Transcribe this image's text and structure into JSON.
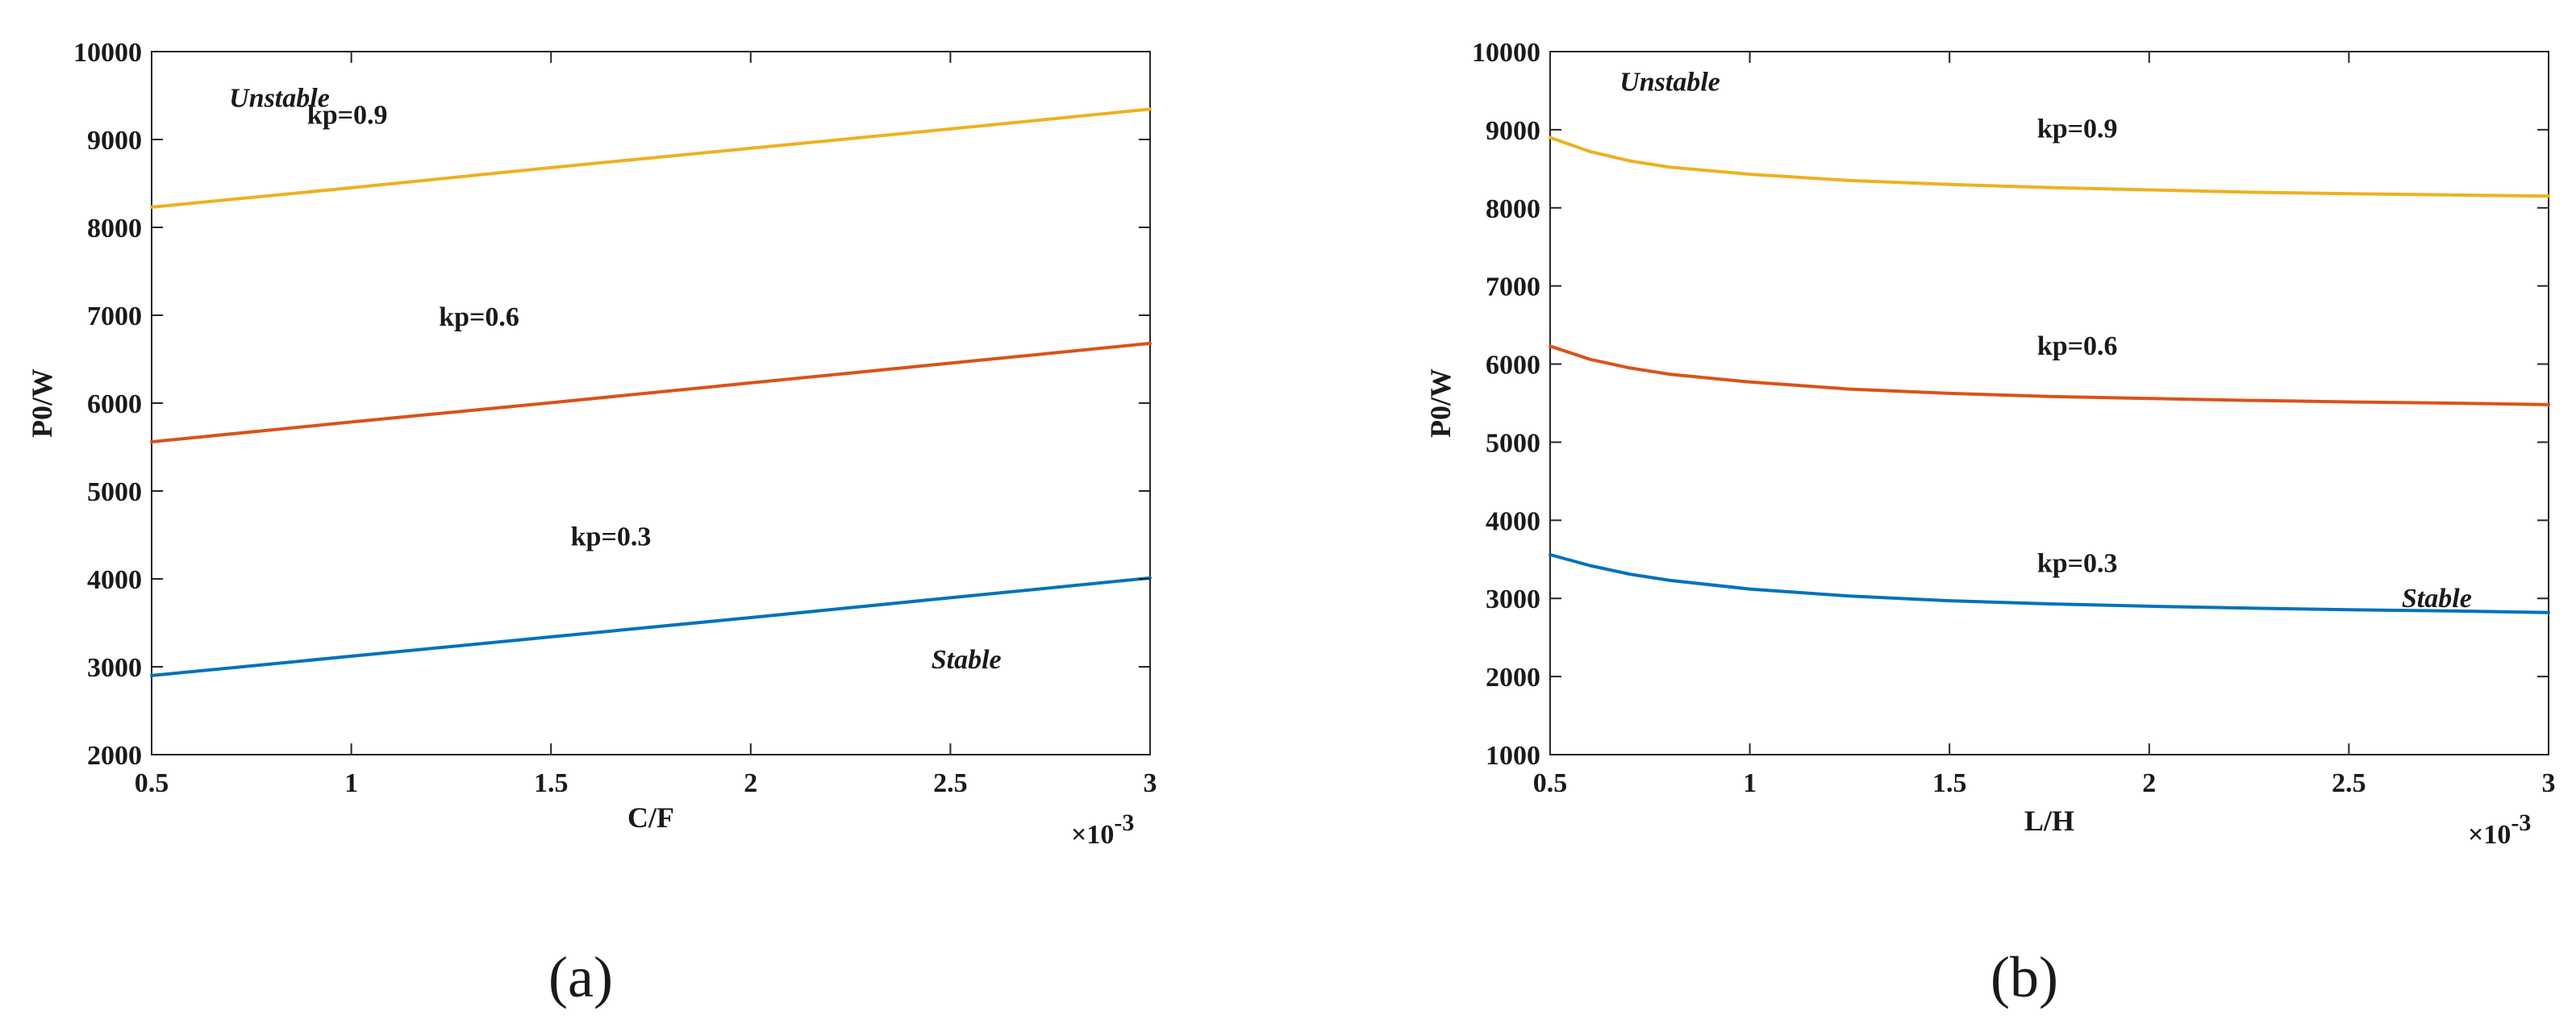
{
  "chart_data": [
    {
      "type": "line",
      "panel_label": "(a)",
      "xlabel": "C/F",
      "ylabel": "P0/W",
      "x_multiplier_base": "×10",
      "x_multiplier_exp": "-3",
      "xlim": [
        0.5,
        3
      ],
      "ylim": [
        2000,
        10000
      ],
      "xticks": [
        0.5,
        1,
        1.5,
        2,
        2.5,
        3
      ],
      "xtick_labels": [
        "0.5",
        "1",
        "1.5",
        "2",
        "2.5",
        "3"
      ],
      "yticks": [
        2000,
        3000,
        4000,
        5000,
        6000,
        7000,
        8000,
        9000,
        10000
      ],
      "ytick_labels": [
        "2000",
        "3000",
        "4000",
        "5000",
        "6000",
        "7000",
        "8000",
        "9000",
        "10000"
      ],
      "grid": false,
      "annotations": [
        {
          "text": "Unstable",
          "x": 0.82,
          "y": 9370
        },
        {
          "text": "Stable",
          "x": 2.54,
          "y": 2980
        }
      ],
      "series": [
        {
          "name": "kp=0.3",
          "color": "#0072bd",
          "label_x": 1.65,
          "label_y": 4380,
          "x": [
            0.5,
            1.0,
            1.5,
            2.0,
            2.5,
            3.0
          ],
          "y": [
            2900,
            3120,
            3340,
            3560,
            3785,
            4010
          ]
        },
        {
          "name": "kp=0.6",
          "color": "#d95319",
          "label_x": 1.32,
          "label_y": 6880,
          "x": [
            0.5,
            1.0,
            1.5,
            2.0,
            2.5,
            3.0
          ],
          "y": [
            5560,
            5785,
            6005,
            6230,
            6455,
            6680
          ]
        },
        {
          "name": "kp=0.9",
          "color": "#edb120",
          "label_x": 0.99,
          "label_y": 9180,
          "x": [
            0.5,
            1.0,
            1.5,
            2.0,
            2.5,
            3.0
          ],
          "y": [
            8230,
            8450,
            8680,
            8900,
            9120,
            9345
          ]
        }
      ]
    },
    {
      "type": "line",
      "panel_label": "(b)",
      "xlabel": "L/H",
      "ylabel": "P0/W",
      "x_multiplier_base": "×10",
      "x_multiplier_exp": "-3",
      "xlim": [
        0.5,
        3
      ],
      "ylim": [
        1000,
        10000
      ],
      "xticks": [
        0.5,
        1,
        1.5,
        2,
        2.5,
        3
      ],
      "xtick_labels": [
        "0.5",
        "1",
        "1.5",
        "2",
        "2.5",
        "3"
      ],
      "yticks": [
        1000,
        2000,
        3000,
        4000,
        5000,
        6000,
        7000,
        8000,
        9000,
        10000
      ],
      "ytick_labels": [
        "1000",
        "2000",
        "3000",
        "4000",
        "5000",
        "6000",
        "7000",
        "8000",
        "9000",
        "10000"
      ],
      "grid": false,
      "annotations": [
        {
          "text": "Unstable",
          "x": 0.8,
          "y": 9500
        },
        {
          "text": "Stable",
          "x": 2.72,
          "y": 2890
        }
      ],
      "series": [
        {
          "name": "kp=0.3",
          "color": "#0072bd",
          "label_x": 1.82,
          "label_y": 3340,
          "x": [
            0.5,
            0.6,
            0.7,
            0.8,
            1.0,
            1.25,
            1.5,
            1.75,
            2.0,
            2.25,
            2.5,
            2.75,
            3.0
          ],
          "y": [
            3560,
            3420,
            3310,
            3230,
            3120,
            3030,
            2970,
            2930,
            2900,
            2875,
            2855,
            2840,
            2820
          ]
        },
        {
          "name": "kp=0.6",
          "color": "#d95319",
          "label_x": 1.82,
          "label_y": 6120,
          "x": [
            0.5,
            0.6,
            0.7,
            0.8,
            1.0,
            1.25,
            1.5,
            1.75,
            2.0,
            2.25,
            2.5,
            2.75,
            3.0
          ],
          "y": [
            6230,
            6060,
            5950,
            5870,
            5770,
            5680,
            5625,
            5585,
            5560,
            5535,
            5515,
            5500,
            5480
          ]
        },
        {
          "name": "kp=0.9",
          "color": "#edb120",
          "label_x": 1.82,
          "label_y": 8900,
          "x": [
            0.5,
            0.6,
            0.7,
            0.8,
            1.0,
            1.25,
            1.5,
            1.75,
            2.0,
            2.25,
            2.5,
            2.75,
            3.0
          ],
          "y": [
            8900,
            8720,
            8600,
            8520,
            8430,
            8350,
            8300,
            8260,
            8230,
            8200,
            8180,
            8165,
            8150
          ]
        }
      ]
    }
  ]
}
